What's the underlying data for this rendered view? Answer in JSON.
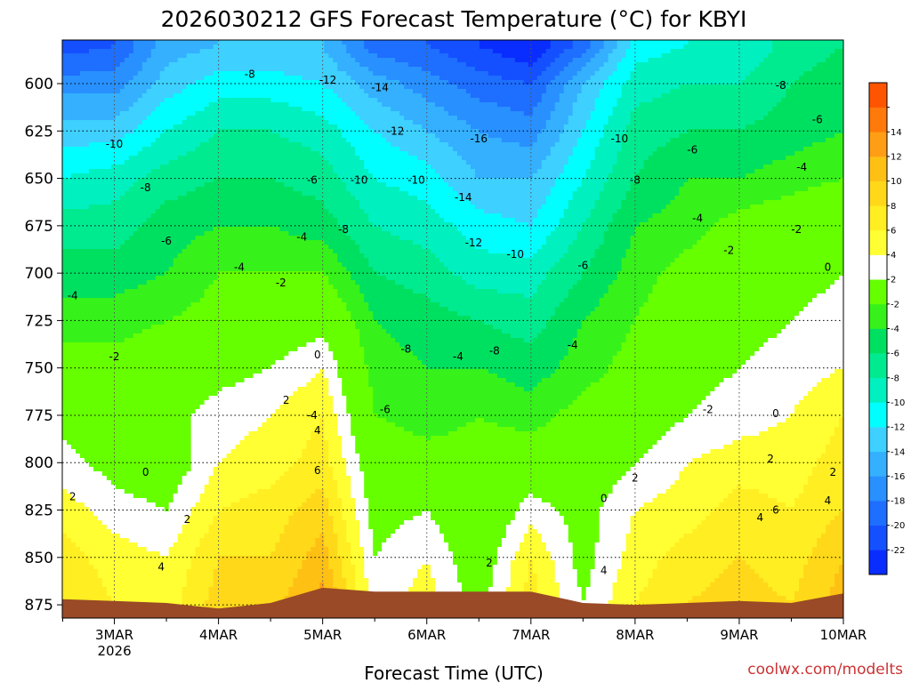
{
  "chart_data": {
    "type": "heatmap",
    "title": "2026030212 GFS Forecast Temperature (°C) for KBYI",
    "xlabel": "Forecast Time (UTC)",
    "ylabel": "",
    "credit": "coolwx.com/modelts",
    "x_ticks": [
      {
        "day": 3,
        "label": "3MAR",
        "sub": "2026"
      },
      {
        "day": 4,
        "label": "4MAR",
        "sub": ""
      },
      {
        "day": 5,
        "label": "5MAR",
        "sub": ""
      },
      {
        "day": 6,
        "label": "6MAR",
        "sub": ""
      },
      {
        "day": 7,
        "label": "7MAR",
        "sub": ""
      },
      {
        "day": 8,
        "label": "8MAR",
        "sub": ""
      },
      {
        "day": 9,
        "label": "9MAR",
        "sub": ""
      },
      {
        "day": 10,
        "label": "10MAR",
        "sub": ""
      }
    ],
    "xlim": [
      2.5,
      10.0
    ],
    "y_ticks": [
      600,
      625,
      650,
      675,
      700,
      725,
      750,
      775,
      800,
      825,
      850,
      875
    ],
    "ylim": [
      577,
      882
    ],
    "colorbar": {
      "levels": [
        -24,
        -22,
        -20,
        -18,
        -16,
        -14,
        -12,
        -10,
        -8,
        -6,
        -4,
        -2,
        2,
        4,
        6,
        8,
        10,
        12,
        14,
        16
      ],
      "labels": [
        -22,
        -20,
        -18,
        -16,
        -14,
        -12,
        -10,
        -8,
        -6,
        -4,
        -2,
        2,
        4,
        6,
        8,
        10,
        12,
        14
      ],
      "colors": [
        "#0a2dff",
        "#1450ff",
        "#1e6eff",
        "#2890ff",
        "#34b0ff",
        "#3ed0ff",
        "#00ffff",
        "#00f0c0",
        "#00eb90",
        "#00e060",
        "#36f21a",
        "#66ff00",
        "#ffffff",
        "#ffff33",
        "#ffee22",
        "#ffd81a",
        "#ffc014",
        "#ff9e14",
        "#ff7a0a",
        "#ff5500"
      ]
    },
    "field": {
      "x": [
        2.5,
        3.0,
        3.5,
        4.0,
        4.5,
        5.0,
        5.5,
        6.0,
        6.5,
        7.0,
        7.5,
        8.0,
        8.5,
        9.0,
        9.5,
        10.0
      ],
      "pressure": [
        580,
        600,
        625,
        650,
        675,
        700,
        725,
        750,
        775,
        800,
        825,
        850,
        875
      ],
      "temperature": [
        [
          -21,
          -20,
          -15,
          -14,
          -14,
          -14,
          -19,
          -20,
          -22,
          -24,
          -19,
          -11,
          -10,
          -10,
          -7,
          -6
        ],
        [
          -17,
          -17,
          -13,
          -11,
          -11,
          -12,
          -15,
          -17,
          -19,
          -20,
          -14,
          -9,
          -8,
          -8,
          -6,
          -5
        ],
        [
          -13,
          -13,
          -10,
          -8,
          -8,
          -9,
          -12,
          -14,
          -16,
          -17,
          -12,
          -7,
          -6,
          -6,
          -5,
          -4
        ],
        [
          -10,
          -9,
          -7,
          -6,
          -6,
          -7,
          -10,
          -11,
          -14,
          -14,
          -10,
          -6,
          -4,
          -4,
          -3,
          -2
        ],
        [
          -7,
          -7,
          -5,
          -4,
          -4,
          -5,
          -8,
          -9,
          -11,
          -12,
          -8,
          -4,
          -3,
          -1,
          0,
          1
        ],
        [
          -5,
          -5,
          -4,
          -2,
          -2,
          -2,
          -6,
          -7,
          -9,
          -9,
          -6,
          -3,
          -1,
          0,
          1,
          2
        ],
        [
          -3,
          -3,
          -2,
          -1,
          0,
          1,
          -4,
          -5,
          -6,
          -7,
          -4,
          -2,
          0,
          1,
          2,
          3
        ],
        [
          -1,
          -1,
          0,
          1,
          2,
          4,
          -3,
          -4,
          -4,
          -5,
          -3,
          -1,
          1,
          2,
          3,
          4
        ],
        [
          1,
          0,
          1,
          3,
          4,
          6,
          -2,
          -3,
          -2,
          -3,
          -1,
          0,
          2,
          3,
          4,
          6
        ],
        [
          3,
          1,
          0,
          4,
          5,
          7,
          0,
          -1,
          -1,
          0,
          0,
          2,
          4,
          5,
          5,
          7
        ],
        [
          5,
          3,
          2,
          6,
          7,
          9,
          1,
          2,
          -1,
          3,
          1,
          4,
          5,
          7,
          6,
          8
        ],
        [
          7,
          5,
          4,
          8,
          8,
          11,
          2,
          4,
          0,
          6,
          1,
          5,
          7,
          8,
          7,
          10
        ],
        [
          8,
          6,
          5,
          9,
          9,
          13,
          3,
          5,
          1,
          7,
          2,
          6,
          8,
          9,
          8,
          11
        ]
      ],
      "terrain_pressure": [
        872,
        873,
        874,
        877,
        874,
        866,
        868,
        868,
        868,
        868,
        874,
        875,
        874,
        873,
        874,
        869
      ]
    },
    "contour_labels": [
      {
        "t": 3.0,
        "p": 632,
        "text": "-10"
      },
      {
        "t": 4.3,
        "p": 595,
        "text": "-8"
      },
      {
        "t": 5.05,
        "p": 598,
        "text": "-12"
      },
      {
        "t": 5.55,
        "p": 602,
        "text": "-14"
      },
      {
        "t": 5.7,
        "p": 625,
        "text": "-12"
      },
      {
        "t": 6.5,
        "p": 629,
        "text": "-16"
      },
      {
        "t": 6.35,
        "p": 660,
        "text": "-14"
      },
      {
        "t": 6.45,
        "p": 684,
        "text": "-12"
      },
      {
        "t": 6.85,
        "p": 690,
        "text": "-10"
      },
      {
        "t": 5.35,
        "p": 651,
        "text": "-10"
      },
      {
        "t": 5.9,
        "p": 651,
        "text": "-10"
      },
      {
        "t": 7.85,
        "p": 629,
        "text": "-10"
      },
      {
        "t": 8.55,
        "p": 635,
        "text": "-6"
      },
      {
        "t": 3.3,
        "p": 655,
        "text": "-8"
      },
      {
        "t": 4.9,
        "p": 651,
        "text": "-6"
      },
      {
        "t": 8.0,
        "p": 651,
        "text": "-8"
      },
      {
        "t": 9.4,
        "p": 601,
        "text": "-8"
      },
      {
        "t": 9.75,
        "p": 619,
        "text": "-6"
      },
      {
        "t": 9.6,
        "p": 644,
        "text": "-4"
      },
      {
        "t": 3.5,
        "p": 683,
        "text": "-6"
      },
      {
        "t": 4.2,
        "p": 697,
        "text": "-4"
      },
      {
        "t": 4.8,
        "p": 681,
        "text": "-4"
      },
      {
        "t": 5.2,
        "p": 677,
        "text": "-8"
      },
      {
        "t": 7.5,
        "p": 696,
        "text": "-6"
      },
      {
        "t": 8.6,
        "p": 671,
        "text": "-4"
      },
      {
        "t": 8.9,
        "p": 688,
        "text": "-2"
      },
      {
        "t": 9.55,
        "p": 677,
        "text": "-2"
      },
      {
        "t": 9.85,
        "p": 697,
        "text": "0"
      },
      {
        "t": 2.6,
        "p": 712,
        "text": "-4"
      },
      {
        "t": 4.6,
        "p": 705,
        "text": "-2"
      },
      {
        "t": 4.9,
        "p": 775,
        "text": "-4"
      },
      {
        "t": 3.0,
        "p": 744,
        "text": "-2"
      },
      {
        "t": 4.95,
        "p": 743,
        "text": "0"
      },
      {
        "t": 5.8,
        "p": 740,
        "text": "-8"
      },
      {
        "t": 6.3,
        "p": 744,
        "text": "-4"
      },
      {
        "t": 6.65,
        "p": 741,
        "text": "-8"
      },
      {
        "t": 7.4,
        "p": 738,
        "text": "-4"
      },
      {
        "t": 5.6,
        "p": 772,
        "text": "-6"
      },
      {
        "t": 8.7,
        "p": 772,
        "text": "-2"
      },
      {
        "t": 9.35,
        "p": 774,
        "text": "0"
      },
      {
        "t": 4.65,
        "p": 767,
        "text": "2"
      },
      {
        "t": 4.95,
        "p": 783,
        "text": "4"
      },
      {
        "t": 4.95,
        "p": 804,
        "text": "6"
      },
      {
        "t": 3.3,
        "p": 805,
        "text": "0"
      },
      {
        "t": 2.6,
        "p": 818,
        "text": "2"
      },
      {
        "t": 3.7,
        "p": 830,
        "text": "2"
      },
      {
        "t": 3.45,
        "p": 855,
        "text": "4"
      },
      {
        "t": 9.3,
        "p": 798,
        "text": "2"
      },
      {
        "t": 9.9,
        "p": 805,
        "text": "2"
      },
      {
        "t": 9.85,
        "p": 820,
        "text": "4"
      },
      {
        "t": 9.35,
        "p": 825,
        "text": "6"
      },
      {
        "t": 9.2,
        "p": 829,
        "text": "4"
      },
      {
        "t": 8.0,
        "p": 808,
        "text": "2"
      },
      {
        "t": 7.7,
        "p": 819,
        "text": "0"
      },
      {
        "t": 6.6,
        "p": 853,
        "text": "2"
      },
      {
        "t": 7.7,
        "p": 857,
        "text": "4"
      }
    ]
  }
}
